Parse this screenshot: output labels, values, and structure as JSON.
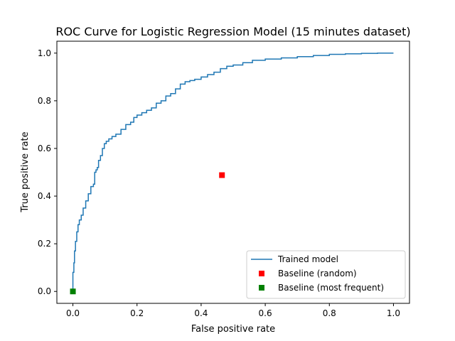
{
  "chart_data": {
    "type": "line",
    "title": "ROC Curve for Logistic Regression Model (15 minutes dataset)",
    "xlabel": "False positive rate",
    "ylabel": "True positive rate",
    "xlim": [
      -0.05,
      1.05
    ],
    "ylim": [
      -0.05,
      1.05
    ],
    "xticks": [
      0.0,
      0.2,
      0.4,
      0.6,
      0.8,
      1.0
    ],
    "yticks": [
      0.0,
      0.2,
      0.4,
      0.6,
      0.8,
      1.0
    ],
    "xtick_labels": [
      "0.0",
      "0.2",
      "0.4",
      "0.6",
      "0.8",
      "1.0"
    ],
    "ytick_labels": [
      "0.0",
      "0.2",
      "0.4",
      "0.6",
      "0.8",
      "1.0"
    ],
    "grid": false,
    "legend_position": "lower-right",
    "series": [
      {
        "name": "Trained model",
        "kind": "line",
        "color": "#1f77b4",
        "x": [
          0.0,
          0.0,
          0.003,
          0.005,
          0.008,
          0.012,
          0.016,
          0.02,
          0.026,
          0.032,
          0.04,
          0.048,
          0.056,
          0.064,
          0.068,
          0.072,
          0.076,
          0.08,
          0.086,
          0.092,
          0.098,
          0.104,
          0.112,
          0.122,
          0.134,
          0.15,
          0.165,
          0.18,
          0.19,
          0.2,
          0.215,
          0.23,
          0.245,
          0.26,
          0.275,
          0.29,
          0.305,
          0.32,
          0.335,
          0.35,
          0.365,
          0.38,
          0.4,
          0.42,
          0.44,
          0.46,
          0.48,
          0.5,
          0.53,
          0.56,
          0.6,
          0.65,
          0.7,
          0.75,
          0.8,
          0.85,
          0.9,
          0.95,
          1.0
        ],
        "y": [
          0.0,
          0.08,
          0.12,
          0.17,
          0.21,
          0.25,
          0.28,
          0.3,
          0.32,
          0.35,
          0.38,
          0.41,
          0.44,
          0.45,
          0.5,
          0.51,
          0.52,
          0.55,
          0.57,
          0.6,
          0.62,
          0.63,
          0.64,
          0.65,
          0.66,
          0.68,
          0.7,
          0.71,
          0.73,
          0.74,
          0.75,
          0.76,
          0.77,
          0.79,
          0.8,
          0.82,
          0.83,
          0.85,
          0.87,
          0.88,
          0.885,
          0.89,
          0.9,
          0.91,
          0.92,
          0.935,
          0.945,
          0.95,
          0.96,
          0.97,
          0.975,
          0.98,
          0.985,
          0.99,
          0.995,
          0.997,
          0.999,
          1.0,
          1.0
        ]
      },
      {
        "name": "Baseline (random)",
        "kind": "marker",
        "marker": "square",
        "color": "#ff0000",
        "x": [
          0.465
        ],
        "y": [
          0.488
        ]
      },
      {
        "name": "Baseline (most frequent)",
        "kind": "marker",
        "marker": "square",
        "color": "#008000",
        "x": [
          0.0
        ],
        "y": [
          0.0
        ]
      }
    ]
  }
}
